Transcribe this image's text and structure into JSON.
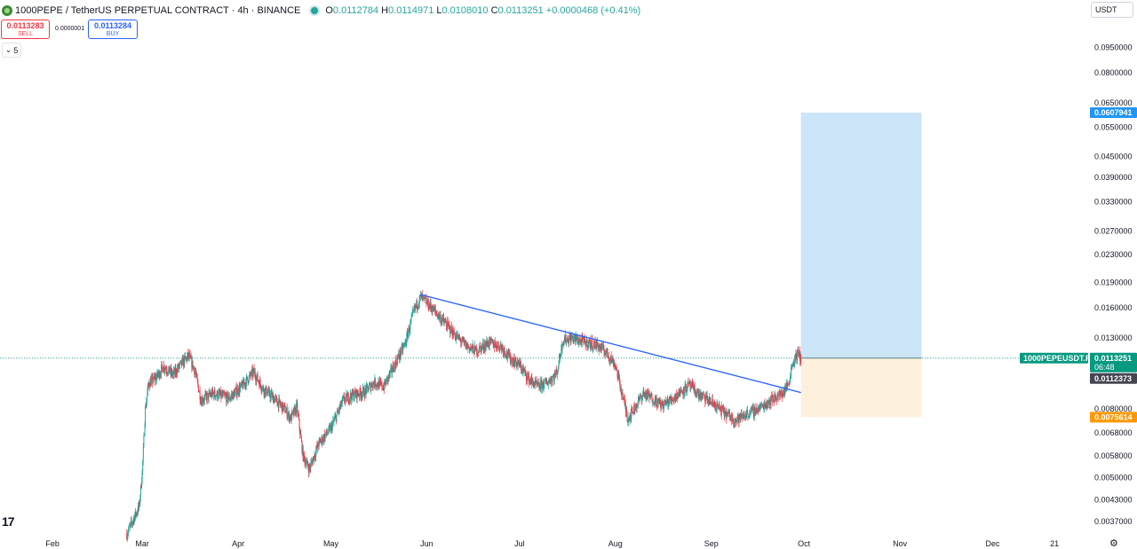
{
  "header": {
    "title": "1000PEPE / TetherUS PERPETUAL CONTRACT · 4h · BINANCE",
    "open_label": "O",
    "open": "0.0112784",
    "high_label": "H",
    "high": "0.0114971",
    "low_label": "L",
    "low": "0.0108010",
    "close_label": "C",
    "close": "0.0113251",
    "change": "+0.0000468 (+0.41%)"
  },
  "trade": {
    "sell_price": "0.0113283",
    "sell_label": "SELL",
    "spread": "0.0000001",
    "buy_price": "0.0113284",
    "buy_label": "BUY"
  },
  "indicators_count": "5",
  "currency": "USDT",
  "colors": {
    "up": "#26a69a",
    "down": "#f23645",
    "trendline": "#2962ff",
    "target_zone": "#cce5f8",
    "stop_zone": "#fdf0dd",
    "target_badge": "#2196f3",
    "stop_badge": "#ff9800",
    "symbol_badge": "#089981"
  },
  "chart_data": {
    "type": "candlestick",
    "scale": "log",
    "ylim": [
      0.0034,
      0.115
    ],
    "y_ticks": [
      "0.0950000",
      "0.0800000",
      "0.0650000",
      "0.0550000",
      "0.0450000",
      "0.0390000",
      "0.0330000",
      "0.0270000",
      "0.0230000",
      "0.0190000",
      "0.0160000",
      "0.0130000",
      "0.0080000",
      "0.0068000",
      "0.0058000",
      "0.0050000",
      "0.0043000",
      "0.0037000"
    ],
    "x_ticks": [
      "Feb",
      "Mar",
      "Apr",
      "May",
      "Jun",
      "Jul",
      "Aug",
      "Sep",
      "Oct",
      "Nov",
      "Dec",
      "21"
    ],
    "x_tick_days": [
      31,
      60,
      91,
      121,
      152,
      182,
      213,
      244,
      274,
      305,
      335,
      355
    ],
    "xlim_days": [
      14,
      365
    ],
    "price_path": [
      [
        55,
        0.0034
      ],
      [
        59,
        0.0041
      ],
      [
        60,
        0.0052
      ],
      [
        61,
        0.008
      ],
      [
        62,
        0.0095
      ],
      [
        64,
        0.0098
      ],
      [
        67,
        0.0107
      ],
      [
        70,
        0.0101
      ],
      [
        73,
        0.011
      ],
      [
        75,
        0.0115
      ],
      [
        77,
        0.0104
      ],
      [
        79,
        0.0085
      ],
      [
        83,
        0.0089
      ],
      [
        88,
        0.0086
      ],
      [
        92,
        0.0093
      ],
      [
        96,
        0.0103
      ],
      [
        99,
        0.0092
      ],
      [
        102,
        0.0087
      ],
      [
        106,
        0.008
      ],
      [
        108,
        0.0075
      ],
      [
        110,
        0.0081
      ],
      [
        112,
        0.0058
      ],
      [
        114,
        0.0053
      ],
      [
        117,
        0.0063
      ],
      [
        121,
        0.007
      ],
      [
        125,
        0.0085
      ],
      [
        128,
        0.0088
      ],
      [
        132,
        0.009
      ],
      [
        135,
        0.0096
      ],
      [
        138,
        0.0093
      ],
      [
        142,
        0.011
      ],
      [
        145,
        0.0125
      ],
      [
        148,
        0.0158
      ],
      [
        150,
        0.0172
      ],
      [
        153,
        0.0162
      ],
      [
        156,
        0.0151
      ],
      [
        159,
        0.014
      ],
      [
        162,
        0.013
      ],
      [
        165,
        0.0123
      ],
      [
        168,
        0.0119
      ],
      [
        172,
        0.0126
      ],
      [
        176,
        0.0123
      ],
      [
        179,
        0.0113
      ],
      [
        182,
        0.0108
      ],
      [
        185,
        0.0098
      ],
      [
        188,
        0.0093
      ],
      [
        191,
        0.0096
      ],
      [
        194,
        0.0102
      ],
      [
        196,
        0.0128
      ],
      [
        199,
        0.013
      ],
      [
        202,
        0.0127
      ],
      [
        205,
        0.0125
      ],
      [
        207,
        0.0124
      ],
      [
        210,
        0.0118
      ],
      [
        213,
        0.0108
      ],
      [
        215,
        0.009
      ],
      [
        217,
        0.0075
      ],
      [
        219,
        0.008
      ],
      [
        222,
        0.0089
      ],
      [
        225,
        0.0086
      ],
      [
        228,
        0.0082
      ],
      [
        231,
        0.0085
      ],
      [
        234,
        0.009
      ],
      [
        237,
        0.0094
      ],
      [
        240,
        0.0088
      ],
      [
        243,
        0.0085
      ],
      [
        246,
        0.0081
      ],
      [
        249,
        0.0077
      ],
      [
        252,
        0.0074
      ],
      [
        255,
        0.0077
      ],
      [
        258,
        0.0079
      ],
      [
        261,
        0.0082
      ],
      [
        264,
        0.0086
      ],
      [
        267,
        0.0089
      ],
      [
        269,
        0.0095
      ],
      [
        270,
        0.0107
      ],
      [
        271,
        0.0113
      ],
      [
        272,
        0.0117
      ],
      [
        273,
        0.0113
      ]
    ],
    "trendline": {
      "start": [
        150,
        0.0175
      ],
      "end": [
        273,
        0.00895
      ]
    },
    "position": {
      "start_day": 273,
      "end_day": 312,
      "entry": 0.0113251,
      "target": 0.0607941,
      "stop": 0.0075614
    },
    "price_labels": {
      "target": "0.0607941",
      "symbol": "1000PEPEUSDT.P",
      "current": "0.0113251",
      "countdown": "06:48",
      "secondary": "0.0112373",
      "stop": "0.0075614"
    }
  }
}
